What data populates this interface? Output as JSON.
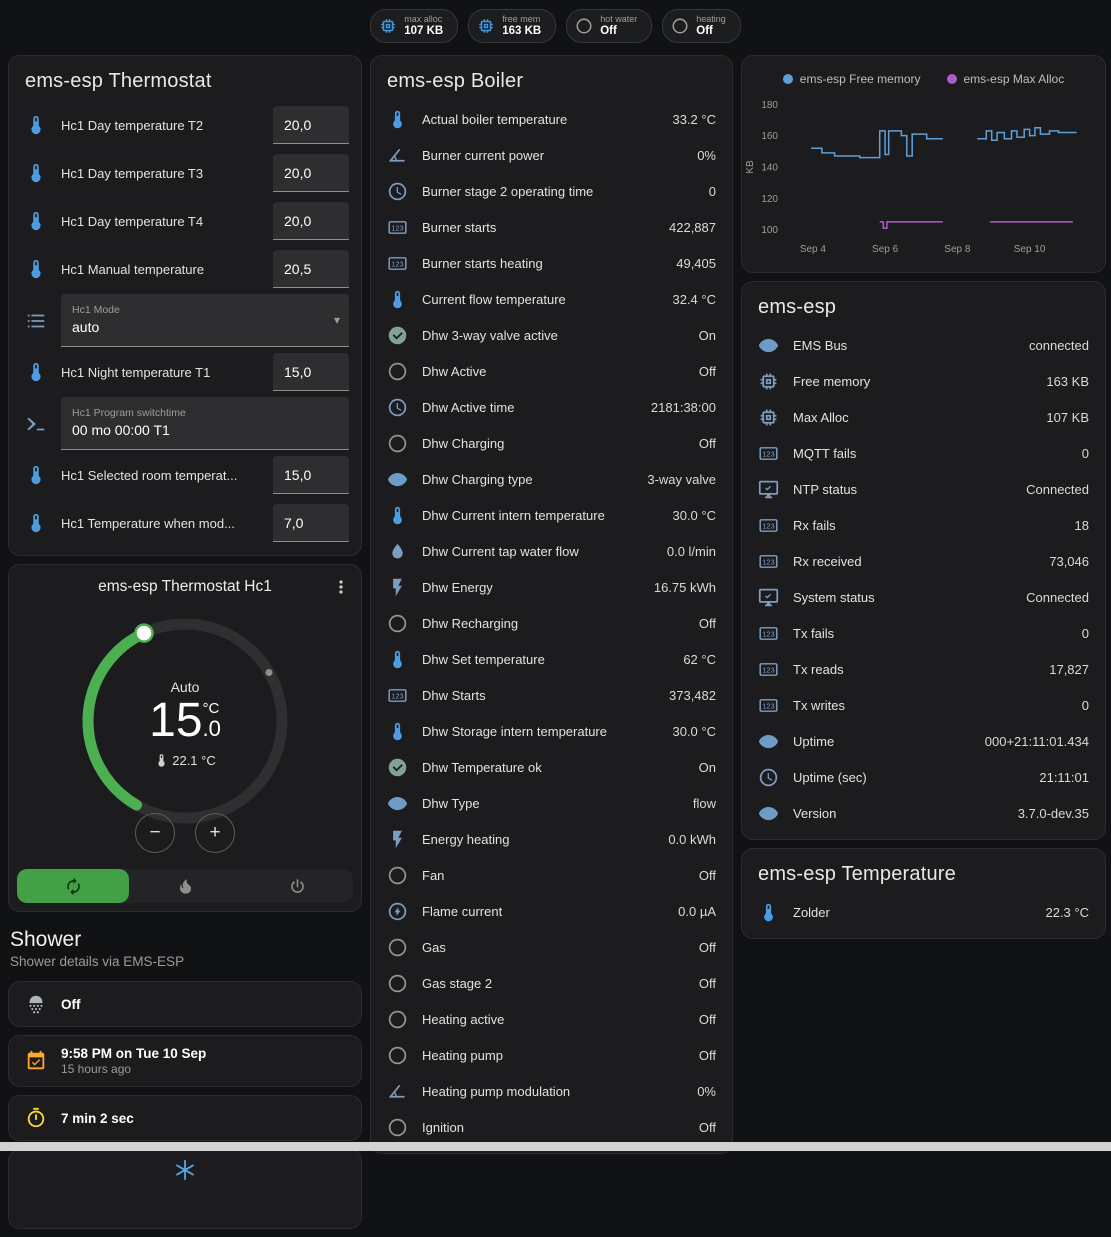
{
  "topbar": {
    "chips": [
      {
        "icon": "chip-icon",
        "color": "blue",
        "label": "max alloc",
        "value": "107 KB"
      },
      {
        "icon": "chip-icon",
        "color": "blue",
        "label": "free mem",
        "value": "163 KB"
      },
      {
        "icon": "circle-icon",
        "color": "gray",
        "label": "hot water",
        "value": "Off"
      },
      {
        "icon": "circle-icon",
        "color": "gray",
        "label": "heating",
        "value": "Off"
      }
    ]
  },
  "thermostat_card": {
    "title": "ems-esp Thermostat",
    "rows": [
      {
        "type": "number",
        "icon": "thermometer-icon",
        "label": "Hc1 Day temperature T2",
        "value": "20,0"
      },
      {
        "type": "number",
        "icon": "thermometer-icon",
        "label": "Hc1 Day temperature T3",
        "value": "20,0"
      },
      {
        "type": "number",
        "icon": "thermometer-icon",
        "label": "Hc1 Day temperature T4",
        "value": "20,0"
      },
      {
        "type": "number",
        "icon": "thermometer-icon",
        "label": "Hc1 Manual temperature",
        "value": "20,5"
      },
      {
        "type": "select",
        "icon": "list-icon",
        "label": "Hc1 Mode",
        "value": "auto"
      },
      {
        "type": "number",
        "icon": "thermometer-icon",
        "label": "Hc1 Night temperature T1",
        "value": "15,0"
      },
      {
        "type": "field",
        "icon": "console-icon",
        "label": "Hc1 Program switchtime",
        "value": "00 mo 00:00 T1"
      },
      {
        "type": "number",
        "icon": "thermometer-icon",
        "label": "Hc1 Selected room temperat...",
        "value": "15,0"
      },
      {
        "type": "number",
        "icon": "thermometer-icon",
        "label": "Hc1 Temperature when mod...",
        "value": "7,0"
      }
    ]
  },
  "dial_card": {
    "title": "ems-esp Thermostat Hc1",
    "mode_label": "Auto",
    "target_int": "15",
    "target_frac": ".0",
    "target_unit": "°C",
    "current_temp": "22.1 °C",
    "minus_label": "−",
    "plus_label": "+",
    "accent": "#4caf50",
    "modes": [
      {
        "name": "mode-auto-button",
        "icon": "autorenew-icon",
        "state": "active"
      },
      {
        "name": "mode-heat-button",
        "icon": "flame-icon"
      },
      {
        "name": "mode-off-button",
        "icon": "power-icon"
      }
    ]
  },
  "shower": {
    "title": "Shower",
    "subtitle": "Shower details via EMS-ESP",
    "cards": [
      {
        "icon": "shower-icon",
        "title": "Off",
        "subtitle": ""
      },
      {
        "icon": "calendar-icon",
        "title": "9:58 PM on Tue 10 Sep",
        "subtitle": "15 hours ago"
      },
      {
        "icon": "timer-icon",
        "title": "7 min 2 sec",
        "subtitle": ""
      }
    ],
    "partial_icon": "snowflake-icon"
  },
  "boiler_card": {
    "title": "ems-esp Boiler",
    "rows": [
      {
        "icon": "thermometer-icon",
        "label": "Actual boiler temperature",
        "value": "33.2 °C"
      },
      {
        "icon": "angle-icon",
        "label": "Burner current power",
        "value": "0%"
      },
      {
        "icon": "clock-icon",
        "label": "Burner stage 2 operating time",
        "value": "0"
      },
      {
        "icon": "counter-icon",
        "label": "Burner starts",
        "value": "422,887"
      },
      {
        "icon": "counter-icon",
        "label": "Burner starts heating",
        "value": "49,405"
      },
      {
        "icon": "thermometer-icon",
        "label": "Current flow temperature",
        "value": "32.4 °C"
      },
      {
        "icon": "check-circle-icon",
        "label": "Dhw 3-way valve active",
        "value": "On"
      },
      {
        "icon": "circle-icon",
        "label": "Dhw Active",
        "value": "Off"
      },
      {
        "icon": "clock-icon",
        "label": "Dhw Active time",
        "value": "2181:38:00"
      },
      {
        "icon": "circle-icon",
        "label": "Dhw Charging",
        "value": "Off"
      },
      {
        "icon": "eye-icon",
        "label": "Dhw Charging type",
        "value": "3-way valve"
      },
      {
        "icon": "thermometer-icon",
        "label": "Dhw Current intern temperature",
        "value": "30.0 °C"
      },
      {
        "icon": "water-pump-icon",
        "label": "Dhw Current tap water flow",
        "value": "0.0 l/min"
      },
      {
        "icon": "lightning-icon",
        "label": "Dhw Energy",
        "value": "16.75 kWh"
      },
      {
        "icon": "circle-icon",
        "label": "Dhw Recharging",
        "value": "Off"
      },
      {
        "icon": "thermometer-icon",
        "label": "Dhw Set temperature",
        "value": "62 °C"
      },
      {
        "icon": "counter-icon",
        "label": "Dhw Starts",
        "value": "373,482"
      },
      {
        "icon": "thermometer-icon",
        "label": "Dhw Storage intern temperature",
        "value": "30.0 °C"
      },
      {
        "icon": "check-circle-icon",
        "label": "Dhw Temperature ok",
        "value": "On"
      },
      {
        "icon": "eye-icon",
        "label": "Dhw Type",
        "value": "flow"
      },
      {
        "icon": "lightning-icon",
        "label": "Energy heating",
        "value": "0.0 kWh"
      },
      {
        "icon": "circle-icon",
        "label": "Fan",
        "value": "Off"
      },
      {
        "icon": "flash-circle-icon",
        "label": "Flame current",
        "value": "0.0 µA"
      },
      {
        "icon": "circle-icon",
        "label": "Gas",
        "value": "Off"
      },
      {
        "icon": "circle-icon",
        "label": "Gas stage 2",
        "value": "Off"
      },
      {
        "icon": "circle-icon",
        "label": "Heating active",
        "value": "Off"
      },
      {
        "icon": "circle-icon",
        "label": "Heating pump",
        "value": "Off"
      },
      {
        "icon": "angle-icon",
        "label": "Heating pump modulation",
        "value": "0%"
      },
      {
        "icon": "circle-icon",
        "label": "Ignition",
        "value": "Off"
      }
    ]
  },
  "chart_data": {
    "type": "line",
    "title": "",
    "ylabel": "KB",
    "legend_position": "top",
    "grid": false,
    "y_ticks": [
      100,
      120,
      140,
      160,
      180
    ],
    "y_range": [
      96,
      184
    ],
    "x_range": [
      3.2,
      11.7
    ],
    "x_ticks": [
      {
        "day": 4,
        "label": "Sep 4"
      },
      {
        "day": 6,
        "label": "Sep 6"
      },
      {
        "day": 8,
        "label": "Sep 8"
      },
      {
        "day": 10,
        "label": "Sep 10"
      }
    ],
    "series": [
      {
        "name": "ems-esp Free memory",
        "color": "#5f9fd9",
        "segments": [
          [
            [
              3.95,
              152
            ],
            [
              4.25,
              152
            ],
            [
              4.25,
              149
            ],
            [
              4.6,
              149
            ],
            [
              4.6,
              147
            ],
            [
              5.3,
              147
            ],
            [
              5.3,
              146
            ],
            [
              5.85,
              146
            ],
            [
              5.85,
              163
            ],
            [
              6.0,
              163
            ],
            [
              6.0,
              148
            ],
            [
              6.1,
              148
            ],
            [
              6.1,
              163
            ],
            [
              6.45,
              163
            ],
            [
              6.45,
              160
            ],
            [
              6.6,
              160
            ],
            [
              6.6,
              147
            ],
            [
              6.75,
              147
            ],
            [
              6.75,
              161
            ],
            [
              7.15,
              161
            ],
            [
              7.15,
              158
            ],
            [
              7.6,
              158
            ]
          ],
          [
            [
              8.55,
              158
            ],
            [
              8.8,
              158
            ],
            [
              8.8,
              163
            ],
            [
              8.95,
              163
            ],
            [
              8.95,
              157
            ],
            [
              9.1,
              157
            ],
            [
              9.1,
              162
            ],
            [
              9.3,
              162
            ],
            [
              9.3,
              158
            ],
            [
              9.5,
              158
            ],
            [
              9.5,
              163
            ],
            [
              9.65,
              163
            ],
            [
              9.65,
              159
            ],
            [
              9.85,
              159
            ],
            [
              9.85,
              164
            ],
            [
              10.0,
              164
            ],
            [
              10.0,
              160
            ],
            [
              10.15,
              160
            ],
            [
              10.15,
              165
            ],
            [
              10.3,
              165
            ],
            [
              10.3,
              161
            ],
            [
              10.55,
              161
            ],
            [
              10.55,
              163
            ],
            [
              10.8,
              163
            ],
            [
              10.8,
              162
            ],
            [
              11.3,
              162
            ]
          ]
        ]
      },
      {
        "name": "ems-esp Max Alloc",
        "color": "#ad5cc5",
        "segments": [
          [
            [
              5.85,
              105
            ],
            [
              5.95,
              105
            ],
            [
              5.95,
              101
            ],
            [
              6.05,
              101
            ],
            [
              6.05,
              105
            ],
            [
              7.6,
              105
            ]
          ],
          [
            [
              8.9,
              105
            ],
            [
              11.2,
              105
            ]
          ]
        ]
      }
    ]
  },
  "emsesp_card": {
    "title": "ems-esp",
    "rows": [
      {
        "icon": "eye-icon",
        "label": "EMS Bus",
        "value": "connected"
      },
      {
        "icon": "chip-icon",
        "label": "Free memory",
        "value": "163 KB"
      },
      {
        "icon": "chip-icon",
        "label": "Max Alloc",
        "value": "107 KB"
      },
      {
        "icon": "counter-icon",
        "label": "MQTT fails",
        "value": "0"
      },
      {
        "icon": "monitor-check-icon",
        "label": "NTP status",
        "value": "Connected"
      },
      {
        "icon": "counter-icon",
        "label": "Rx fails",
        "value": "18"
      },
      {
        "icon": "counter-icon",
        "label": "Rx received",
        "value": "73,046"
      },
      {
        "icon": "monitor-check-icon",
        "label": "System status",
        "value": "Connected"
      },
      {
        "icon": "counter-icon",
        "label": "Tx fails",
        "value": "0"
      },
      {
        "icon": "counter-icon",
        "label": "Tx reads",
        "value": "17,827"
      },
      {
        "icon": "counter-icon",
        "label": "Tx writes",
        "value": "0"
      },
      {
        "icon": "eye-icon",
        "label": "Uptime",
        "value": "000+21:11:01.434"
      },
      {
        "icon": "clock-icon",
        "label": "Uptime (sec)",
        "value": "21:11:01"
      },
      {
        "icon": "eye-icon",
        "label": "Version",
        "value": "3.7.0-dev.35"
      }
    ]
  },
  "temperature_card": {
    "title": "ems-esp Temperature",
    "rows": [
      {
        "icon": "thermometer-icon",
        "label": "Zolder",
        "value": "22.3 °C"
      }
    ]
  }
}
